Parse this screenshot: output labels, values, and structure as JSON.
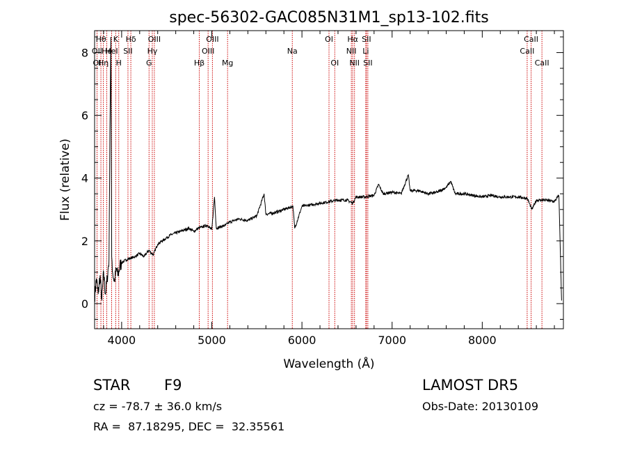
{
  "chart_data": {
    "type": "line",
    "title": "spec-56302-GAC085N31M1_sp13-102.fits",
    "xlabel": "Wavelength (Å)",
    "ylabel": "Flux (relative)",
    "xlim": [
      3700,
      8900
    ],
    "ylim": [
      -0.8,
      8.7
    ],
    "x_ticks": [
      4000,
      5000,
      6000,
      7000,
      8000
    ],
    "y_ticks": [
      0,
      2,
      4,
      6,
      8
    ],
    "grid": false,
    "line_color": "#000000",
    "marker_color": "#cc0000",
    "series": [
      {
        "x": [
          3700,
          3720,
          3740,
          3760,
          3780,
          3800,
          3820,
          3840,
          3860,
          3870,
          3880,
          3890,
          3900,
          3920,
          3940,
          3960,
          3980,
          4000,
          4050,
          4100,
          4150,
          4200,
          4250,
          4300,
          4350,
          4400,
          4450,
          4500,
          4550,
          4600,
          4650,
          4700,
          4750,
          4800,
          4850,
          4900,
          4950,
          5000,
          5030,
          5050,
          5100,
          5150,
          5200,
          5300,
          5400,
          5500,
          5580,
          5600,
          5700,
          5800,
          5900,
          5920,
          6000,
          6100,
          6200,
          6300,
          6400,
          6500,
          6563,
          6600,
          6700,
          6800,
          6850,
          6900,
          7000,
          7100,
          7180,
          7200,
          7300,
          7400,
          7500,
          7600,
          7650,
          7700,
          7800,
          7900,
          8000,
          8100,
          8200,
          8300,
          8400,
          8500,
          8550,
          8600,
          8700,
          8800,
          8850,
          8880
        ],
        "y": [
          0.2,
          0.8,
          0.3,
          0.9,
          0.1,
          1.0,
          0.3,
          0.8,
          1.4,
          5.5,
          8.5,
          1.5,
          1.0,
          0.7,
          1.1,
          0.9,
          1.2,
          1.3,
          1.4,
          1.45,
          1.5,
          1.6,
          1.5,
          1.7,
          1.55,
          1.9,
          2.0,
          2.1,
          2.2,
          2.25,
          2.3,
          2.35,
          2.4,
          2.3,
          2.4,
          2.45,
          2.5,
          2.35,
          3.4,
          2.4,
          2.45,
          2.5,
          2.6,
          2.7,
          2.65,
          2.8,
          3.5,
          2.85,
          2.9,
          3.0,
          3.1,
          2.4,
          3.1,
          3.15,
          3.2,
          3.25,
          3.3,
          3.3,
          3.2,
          3.4,
          3.4,
          3.45,
          3.8,
          3.5,
          3.55,
          3.5,
          4.1,
          3.6,
          3.6,
          3.5,
          3.55,
          3.7,
          3.9,
          3.5,
          3.5,
          3.45,
          3.4,
          3.45,
          3.4,
          3.4,
          3.4,
          3.35,
          3.0,
          3.3,
          3.3,
          3.25,
          3.45,
          0.1
        ]
      }
    ],
    "lines": [
      {
        "w": 3770,
        "label": "Hθ",
        "row": 1
      },
      {
        "w": 3797,
        "label": "Hη",
        "row": 3
      },
      {
        "w": 3727,
        "label": "OII",
        "row": 2
      },
      {
        "w": 3727,
        "label": "OI",
        "row": 3
      },
      {
        "w": 3835,
        "label": "He",
        "row": 2
      },
      {
        "w": 3889,
        "label": "HeI",
        "row": 2
      },
      {
        "w": 3934,
        "label": "K",
        "row": 1
      },
      {
        "w": 3968,
        "label": "H",
        "row": 3
      },
      {
        "w": 4102,
        "label": "Hδ",
        "row": 1
      },
      {
        "w": 4070,
        "label": "SII",
        "row": 2
      },
      {
        "w": 4304,
        "label": "G",
        "row": 3
      },
      {
        "w": 4340,
        "label": "Hγ",
        "row": 2
      },
      {
        "w": 4363,
        "label": "OIII",
        "row": 1
      },
      {
        "w": 4861,
        "label": "Hβ",
        "row": 3
      },
      {
        "w": 4959,
        "label": "OIII",
        "row": 2
      },
      {
        "w": 5007,
        "label": "OIII",
        "row": 1
      },
      {
        "w": 5175,
        "label": "Mg",
        "row": 3
      },
      {
        "w": 5893,
        "label": "Na",
        "row": 2
      },
      {
        "w": 6300,
        "label": "OI",
        "row": 1
      },
      {
        "w": 6364,
        "label": "OI",
        "row": 3
      },
      {
        "w": 6548,
        "label": "NII",
        "row": 2
      },
      {
        "w": 6563,
        "label": "Hα",
        "row": 1
      },
      {
        "w": 6583,
        "label": "NII",
        "row": 3
      },
      {
        "w": 6708,
        "label": "Li",
        "row": 2
      },
      {
        "w": 6716,
        "label": "SII",
        "row": 1
      },
      {
        "w": 6731,
        "label": "SII",
        "row": 3
      },
      {
        "w": 8498,
        "label": "CaII",
        "row": 2
      },
      {
        "w": 8542,
        "label": "CaII",
        "row": 1
      },
      {
        "w": 8662,
        "label": "CaII",
        "row": 3
      }
    ]
  },
  "info": {
    "class_label": "STAR",
    "subclass": "F9",
    "survey": "LAMOST DR5",
    "cz_line": "cz = -78.7 ± 36.0 km/s",
    "obs_date": "Obs-Date: 20130109",
    "radec": "RA =  87.18295, DEC =  32.35561"
  }
}
